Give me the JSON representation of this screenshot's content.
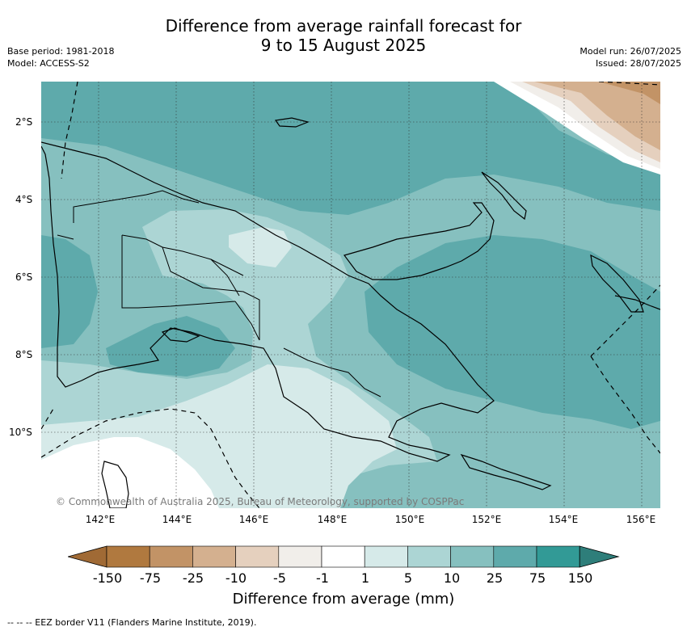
{
  "header": {
    "title_line1": "Difference from average rainfall forecast for",
    "title_line2": "9 to 15 August 2025",
    "base_period": "Base period: 1981-2018",
    "model": "Model: ACCESS-S2",
    "model_run": "Model run: 26/07/2025",
    "issued": "Issued: 28/07/2025"
  },
  "map": {
    "lat_labels": [
      "2°S",
      "4°S",
      "6°S",
      "8°S",
      "10°S"
    ],
    "lon_labels": [
      "142°E",
      "144°E",
      "146°E",
      "148°E",
      "150°E",
      "152°E",
      "154°E",
      "156°E"
    ],
    "copyright": "© Commonwealth of Australia 2025, Bureau of Meteorology, supported by COSPPac"
  },
  "colorbar": {
    "title": "Difference from average (mm)",
    "ticks": [
      "-150",
      "-75",
      "-25",
      "-10",
      "-5",
      "-1",
      "1",
      "5",
      "10",
      "25",
      "75",
      "150"
    ],
    "colors": [
      "#a06a35",
      "#b0793f",
      "#c29366",
      "#d4b08f",
      "#e5d0be",
      "#f1eeea",
      "#ffffff",
      "#d6eae9",
      "#acd5d4",
      "#86c0bf",
      "#5eaaab",
      "#329a96",
      "#2e7e7a"
    ]
  },
  "legend": {
    "eez_note": "-- -- -- EEZ border V11 (Flanders Marine Institute, 2019)."
  }
}
